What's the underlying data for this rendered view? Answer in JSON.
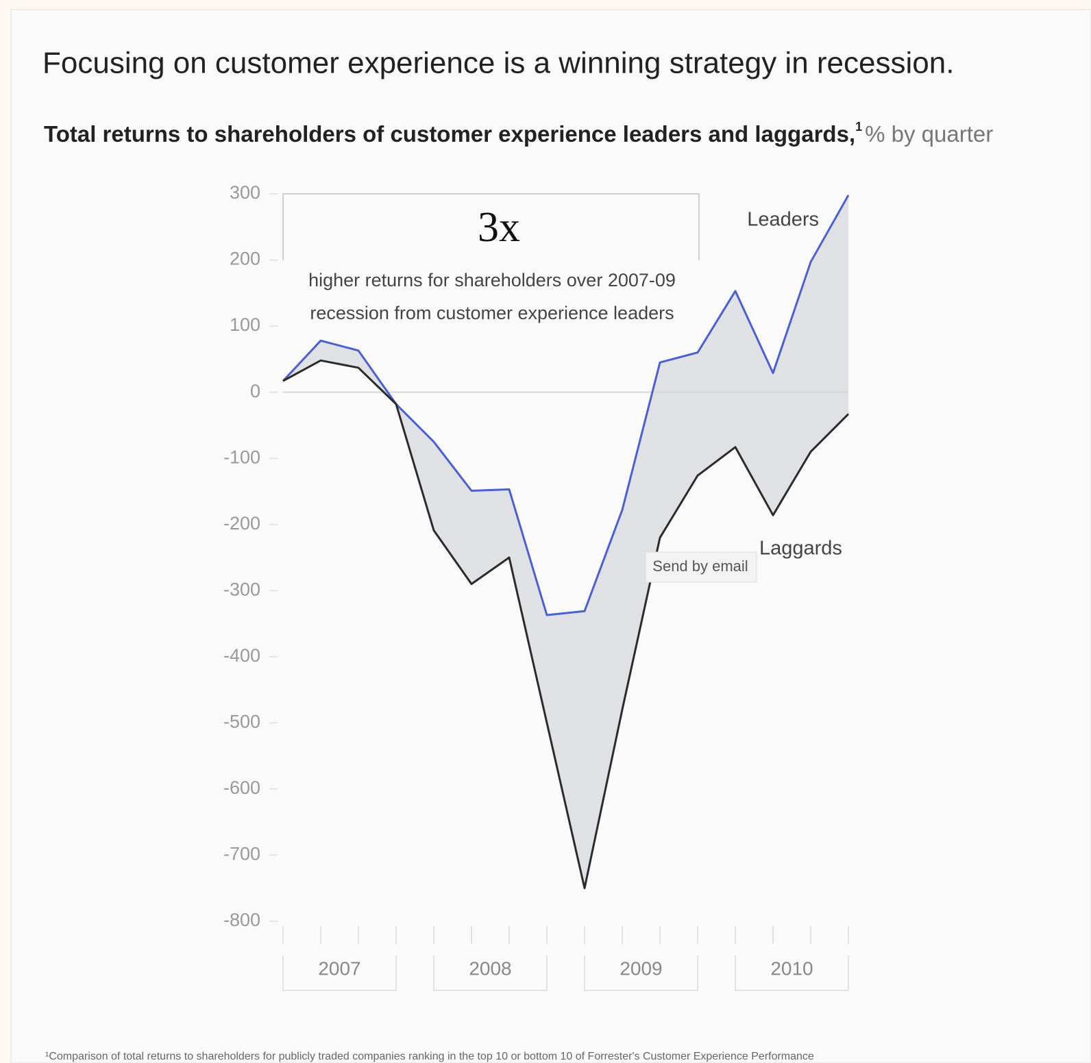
{
  "chart_data": {
    "type": "line",
    "title": "Focusing on customer experience is a winning strategy in recession.",
    "subtitle": "Total returns to shareholders of customer experience leaders and laggards,",
    "subtitle_note_mark": "1",
    "subtitle_unit": "% by quarter",
    "categories": [
      null,
      null,
      null,
      null,
      null,
      null,
      null,
      null,
      null,
      null,
      null,
      null,
      null,
      null,
      null,
      null
    ],
    "year_groups": [
      "2007",
      "2008",
      "2009",
      "2010"
    ],
    "series": [
      {
        "name": "Leaders",
        "color": "#4a5fd0",
        "values": [
          17,
          78,
          63,
          -18,
          -75,
          -149,
          -147,
          -337,
          -331,
          -178,
          45,
          60,
          153,
          29,
          197,
          298
        ]
      },
      {
        "name": "Laggards",
        "color": "#2b2b2b",
        "values": [
          17,
          48,
          37,
          -18,
          -209,
          -290,
          -250,
          -500,
          -750,
          -480,
          -220,
          -126,
          -83,
          -186,
          -90,
          -33
        ]
      }
    ],
    "fill_between": true,
    "fill_color": "#dfe1e4",
    "ylim": [
      -800,
      300
    ],
    "yticks": [
      300,
      200,
      100,
      0,
      -100,
      -200,
      -300,
      -400,
      -500,
      -600,
      -700,
      -800
    ],
    "zero_line": true,
    "annotations": {
      "big": "3x",
      "text_line1": "higher returns for shareholders over 2007-09",
      "text_line2": "recession from customer experience leaders",
      "tooltip": "Send by email"
    },
    "footnote": "¹Comparison of total returns to shareholders for publicly traded companies ranking in the top 10 or bottom 10 of Forrester's Customer Experience Performance"
  }
}
